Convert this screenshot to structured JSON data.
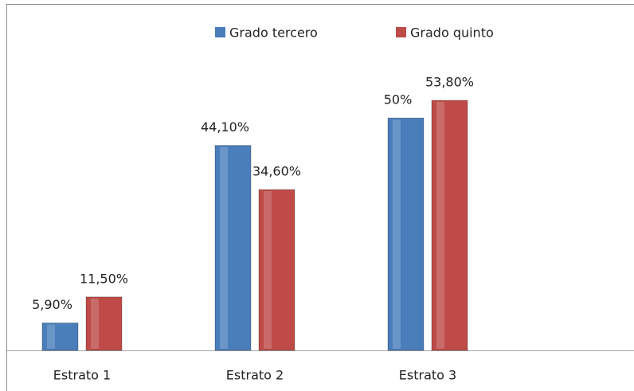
{
  "chart_data": {
    "type": "bar",
    "categories": [
      "Estrato 1",
      "Estrato 2",
      "Estrato 3"
    ],
    "series": [
      {
        "name": "Grado tercero",
        "color": "#4a7ebb",
        "values": [
          5.9,
          44.1,
          50
        ],
        "value_labels": [
          "5,90%",
          "44,10%",
          "50%"
        ]
      },
      {
        "name": "Grado quinto",
        "color": "#be4b48",
        "values": [
          11.5,
          34.6,
          53.8
        ],
        "value_labels": [
          "11,50%",
          "34,60%",
          "53,80%"
        ]
      }
    ]
  }
}
